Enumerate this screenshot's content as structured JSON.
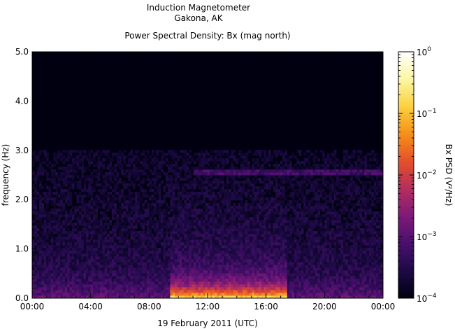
{
  "chart_data": {
    "type": "heatmap",
    "title": "Induction Magnetometer",
    "subtitle": "Gakona, AK",
    "plot_title": "Power Spectral Density: Bx (mag north)",
    "xlabel": "19 February 2011 (UTC)",
    "ylabel": "frequency (Hz)",
    "xlim": [
      0,
      24
    ],
    "ylim": [
      0,
      5
    ],
    "x_ticks": [
      "00:00",
      "04:00",
      "08:00",
      "12:00",
      "16:00",
      "20:00",
      "00:00"
    ],
    "x_tick_values": [
      0,
      4,
      8,
      12,
      16,
      20,
      24
    ],
    "y_ticks": [
      "0.0",
      "1.0",
      "2.0",
      "3.0",
      "4.0",
      "5.0"
    ],
    "y_tick_values": [
      0,
      1,
      2,
      3,
      4,
      5
    ],
    "colorbar": {
      "label": "Bx PSD (V²/Hz)",
      "scale": "log",
      "range": [
        0.0001,
        1
      ],
      "tick_values": [
        0.0001,
        0.001,
        0.01,
        0.1,
        1
      ],
      "tick_labels": [
        {
          "base": "10",
          "exp": "−4"
        },
        {
          "base": "10",
          "exp": "−3"
        },
        {
          "base": "10",
          "exp": "−2"
        },
        {
          "base": "10",
          "exp": "−1"
        },
        {
          "base": "10",
          "exp": "0"
        }
      ],
      "colors": [
        "#000010",
        "#1d0a45",
        "#4a0f6e",
        "#7d1a79",
        "#b52e5e",
        "#e3502a",
        "#f6901a",
        "#fbd040",
        "#fcf6a3",
        "#ffffff"
      ]
    },
    "features": [
      {
        "kind": "band",
        "freq_hz": 2.58,
        "t_start": 11,
        "t_end": 24
      },
      {
        "kind": "low_freq_enhancement",
        "t_start": 9.5,
        "t_end": 17.5,
        "freq_max_hz": 0.5
      }
    ]
  }
}
